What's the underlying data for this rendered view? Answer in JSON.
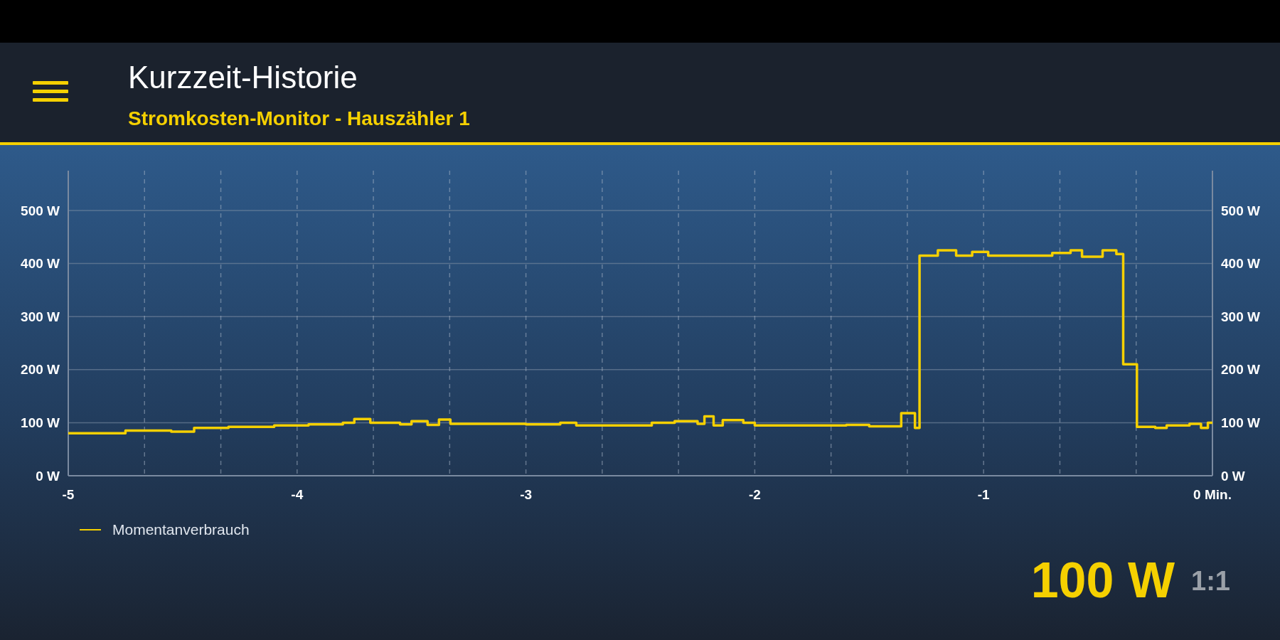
{
  "chart_data": {
    "type": "step",
    "title": "Kurzzeit-Historie",
    "subtitle": "Stromkosten-Monitor - Hauszähler 1",
    "x": [
      -5,
      -4.75,
      -4.55,
      -4.45,
      -4.3,
      -4.1,
      -3.95,
      -3.8,
      -3.75,
      -3.68,
      -3.55,
      -3.5,
      -3.43,
      -3.38,
      -3.33,
      -3.0,
      -2.85,
      -2.78,
      -2.5,
      -2.45,
      -2.35,
      -2.25,
      -2.22,
      -2.18,
      -2.14,
      -2.05,
      -2.0,
      -1.7,
      -1.6,
      -1.5,
      -1.36,
      -1.3,
      -1.28,
      -1.2,
      -1.12,
      -1.05,
      -0.98,
      -0.7,
      -0.62,
      -0.57,
      -0.48,
      -0.42,
      -0.39,
      -0.33,
      -0.25,
      -0.2,
      -0.1,
      -0.05,
      -0.02,
      0
    ],
    "series": [
      {
        "name": "Momentanverbrauch",
        "color": "#f5d000",
        "values": [
          80,
          85,
          83,
          90,
          92,
          95,
          97,
          100,
          107,
          100,
          97,
          103,
          96,
          106,
          98,
          97,
          100,
          95,
          95,
          100,
          103,
          98,
          112,
          95,
          105,
          100,
          95,
          95,
          96,
          93,
          118,
          90,
          415,
          425,
          415,
          422,
          415,
          420,
          425,
          413,
          425,
          418,
          210,
          92,
          90,
          95,
          98,
          90,
          100,
          100
        ]
      }
    ],
    "xlim": [
      -5,
      0
    ],
    "xticks": [
      -5,
      {
        "value": -4.6667,
        "label": null
      },
      {
        "value": -4.3333,
        "label": null
      },
      -4,
      {
        "value": -3.6667,
        "label": null
      },
      {
        "value": -3.3333,
        "label": null
      },
      -3,
      {
        "value": -2.6667,
        "label": null
      },
      {
        "value": -2.3333,
        "label": null
      },
      -2,
      {
        "value": -1.6667,
        "label": null
      },
      {
        "value": -1.3333,
        "label": null
      },
      -1,
      {
        "value": -0.6667,
        "label": null
      },
      {
        "value": -0.3333,
        "label": null
      },
      {
        "value": 0,
        "label": "0 Min."
      }
    ],
    "ylim": [
      0,
      500
    ],
    "yticks": [
      {
        "value": 0,
        "label": "0 W"
      },
      {
        "value": 100,
        "label": "100 W"
      },
      {
        "value": 200,
        "label": "200 W"
      },
      {
        "value": 300,
        "label": "300 W"
      },
      {
        "value": 400,
        "label": "400 W"
      },
      {
        "value": 500,
        "label": "500 W"
      }
    ],
    "y2lim": [
      0,
      500
    ],
    "y2ticks": [
      {
        "value": 0,
        "label": "0 W"
      },
      {
        "value": 100,
        "label": "100 W"
      },
      {
        "value": 200,
        "label": "200 W"
      },
      {
        "value": 300,
        "label": "300 W"
      },
      {
        "value": 400,
        "label": "400 W"
      },
      {
        "value": 500,
        "label": "500 W"
      }
    ],
    "grid": true,
    "legend": "bottom left",
    "annotations": [
      "100 W",
      "1:1"
    ]
  }
}
